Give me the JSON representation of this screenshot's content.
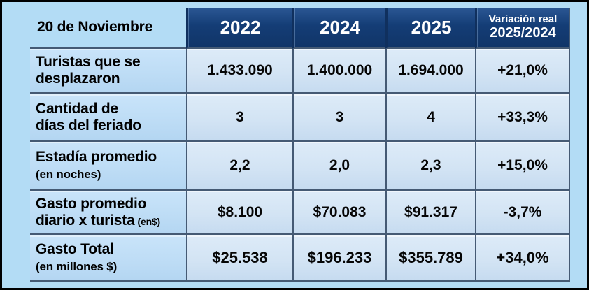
{
  "page": {
    "background": "#b3dcf5",
    "frame_color": "#000000"
  },
  "table": {
    "title_cell": "20 de Noviembre",
    "year_columns": [
      "2022",
      "2024",
      "2025"
    ],
    "variation_column": {
      "line1": "Variación real",
      "line2": "2025/2024"
    },
    "colors": {
      "header_bg": "#143d76",
      "header_text": "#ffffff",
      "grid_line": "#455a74",
      "label_cell_bg": "#bddcf5",
      "data_cell_bg": "#d3e4f4"
    },
    "rows": [
      {
        "label_line1": "Turistas que se",
        "label_line2": "desplazaron",
        "label_sub": "",
        "values": [
          "1.433.090",
          "1.400.000",
          "1.694.000"
        ],
        "variation": "+21,0%"
      },
      {
        "label_line1": "Cantidad de",
        "label_line2": "días del feriado",
        "label_sub": "",
        "values": [
          "3",
          "3",
          "4"
        ],
        "variation": "+33,3%"
      },
      {
        "label_line1": "Estadía promedio",
        "label_line2": "",
        "label_sub": "(en noches)",
        "values": [
          "2,2",
          "2,0",
          "2,3"
        ],
        "variation": "+15,0%"
      },
      {
        "label_line1": "Gasto promedio",
        "label_line2": "diario x turista",
        "label_sub": "(en$)",
        "values": [
          "$8.100",
          "$70.083",
          "$91.317"
        ],
        "variation": "-3,7%"
      },
      {
        "label_line1": "Gasto Total",
        "label_line2": "",
        "label_sub": "(en millones $)",
        "values": [
          "$25.538",
          "$196.233",
          "$355.789"
        ],
        "variation": "+34,0%"
      }
    ]
  },
  "chart_data": {
    "type": "table",
    "title": "20 de Noviembre",
    "columns": [
      "20 de Noviembre",
      "2022",
      "2024",
      "2025",
      "Variación real 2025/2024"
    ],
    "rows": [
      [
        "Turistas que se desplazaron",
        "1.433.090",
        "1.400.000",
        "1.694.000",
        "+21,0%"
      ],
      [
        "Cantidad de días del feriado",
        "3",
        "3",
        "4",
        "+33,3%"
      ],
      [
        "Estadía promedio (en noches)",
        "2,2",
        "2,0",
        "2,3",
        "+15,0%"
      ],
      [
        "Gasto promedio diario x turista (en$)",
        "$8.100",
        "$70.083",
        "$91.317",
        "-3,7%"
      ],
      [
        "Gasto Total (en millones $)",
        "$25.538",
        "$196.233",
        "$355.789",
        "+34,0%"
      ]
    ]
  }
}
